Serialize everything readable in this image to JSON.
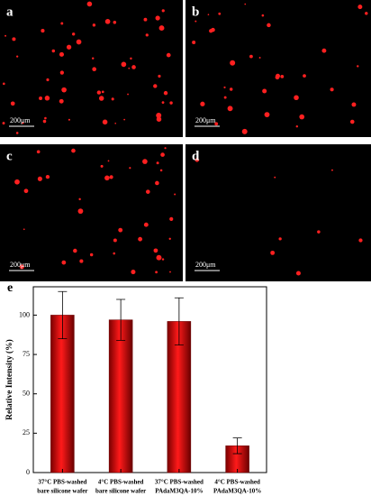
{
  "panels": [
    {
      "label": "a",
      "scale": "200μm"
    },
    {
      "label": "b",
      "scale": "200μm"
    },
    {
      "label": "c",
      "scale": "200μm"
    },
    {
      "label": "d",
      "scale": "200μm"
    }
  ],
  "chart_data": {
    "type": "bar",
    "label": "e",
    "ylabel": "Relative Intensity (%)",
    "categories": [
      [
        "37°C PBS-washed",
        "bare silicone wafer"
      ],
      [
        "4°C PBS-washed",
        "bare silicone wafer"
      ],
      [
        "37°C PBS-washed",
        "PAdaM3QA-10%"
      ],
      [
        "4°C PBS-washed",
        "PAdaM3QA-10%"
      ]
    ],
    "values": [
      100,
      97,
      96,
      17
    ],
    "errors": [
      15,
      13,
      15,
      5
    ],
    "color": "#e00000",
    "ylim": [
      0,
      118
    ],
    "yticks": [
      0,
      25,
      50,
      75,
      100
    ]
  }
}
